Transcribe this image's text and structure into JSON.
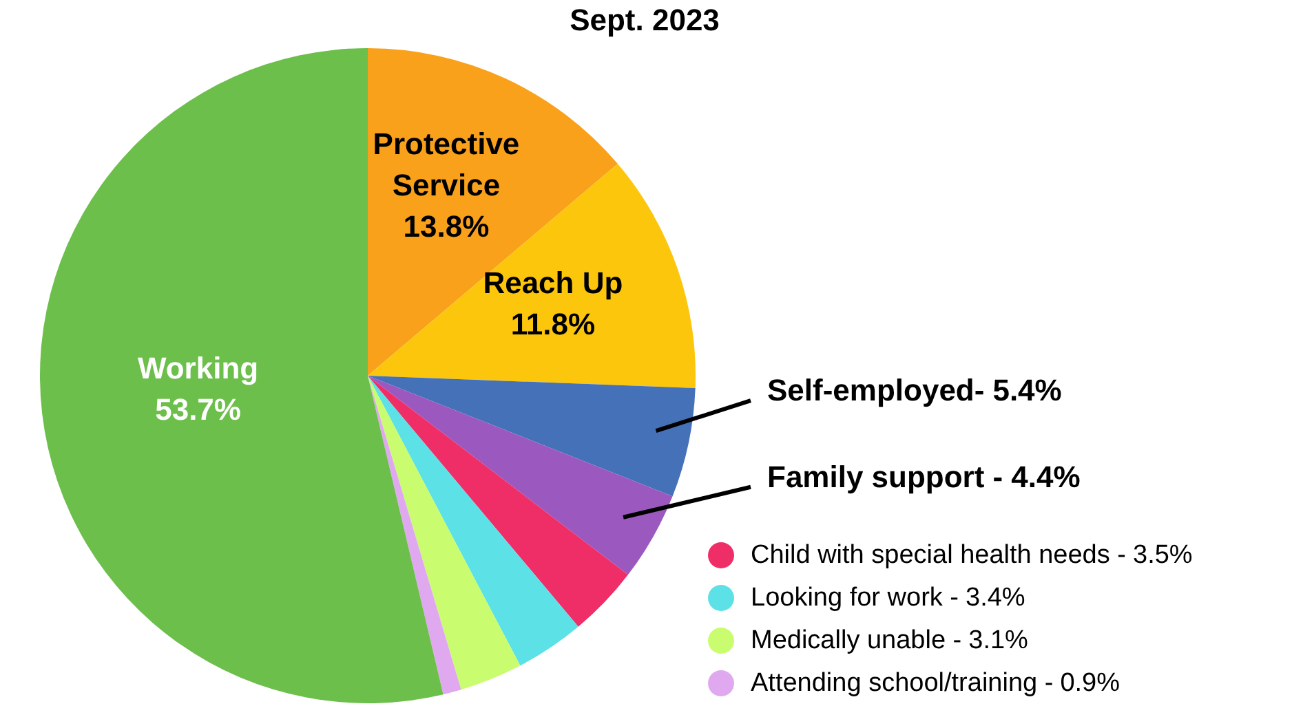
{
  "chart_data": {
    "type": "pie",
    "title": "Sept. 2023",
    "categories": [
      "Protective Service",
      "Reach Up",
      "Self-employed-",
      "Family support -",
      "Child with special health needs -",
      "Looking for work -",
      "Medically unable -",
      "Attending school/training -",
      "Working"
    ],
    "values": [
      13.8,
      11.8,
      5.4,
      4.4,
      3.5,
      3.4,
      3.1,
      0.9,
      53.7
    ],
    "colors": [
      "#f9a11b",
      "#fcc60d",
      "#4571b8",
      "#9b59c0",
      "#ef2e68",
      "#5ce1e6",
      "#c9fd6f",
      "#e0a9ef",
      "#6cbf4b"
    ],
    "value_labels": [
      "13.8%",
      "11.8%",
      "5.4%",
      "4.4%",
      "3.5%",
      "3.4%",
      "3.1%",
      "0.9%",
      "53.7%"
    ],
    "legend": "bottom right"
  }
}
